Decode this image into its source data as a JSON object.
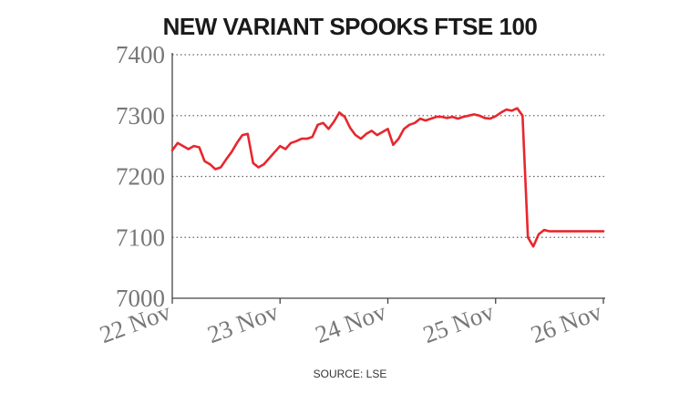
{
  "chart_data": {
    "type": "line",
    "title": "NEW VARIANT SPOOKS FTSE 100",
    "source": "SOURCE: LSE",
    "xlabel": "",
    "ylabel": "",
    "ylim": [
      7000,
      7400
    ],
    "yticks": [
      "7000",
      "7100",
      "7200",
      "7300",
      "7400"
    ],
    "xlim": [
      0,
      4
    ],
    "xticks": [
      "22 Nov",
      "23 Nov",
      "24 Nov",
      "25 Nov",
      "26 Nov"
    ],
    "grid": "horizontal dotted",
    "line_color": "#e8262d",
    "series": [
      {
        "name": "",
        "x": [
          0.0,
          0.05,
          0.1,
          0.15,
          0.2,
          0.25,
          0.3,
          0.35,
          0.4,
          0.45,
          0.5,
          0.55,
          0.6,
          0.65,
          0.7,
          0.75,
          0.8,
          0.85,
          0.9,
          0.95,
          1.0,
          1.05,
          1.1,
          1.15,
          1.2,
          1.25,
          1.3,
          1.35,
          1.4,
          1.45,
          1.5,
          1.55,
          1.6,
          1.65,
          1.7,
          1.75,
          1.8,
          1.85,
          1.9,
          1.95,
          2.0,
          2.05,
          2.1,
          2.15,
          2.2,
          2.25,
          2.3,
          2.35,
          2.4,
          2.45,
          2.5,
          2.55,
          2.6,
          2.65,
          2.7,
          2.75,
          2.8,
          2.85,
          2.9,
          2.95,
          3.0,
          3.05,
          3.1,
          3.15,
          3.2,
          3.25,
          3.3,
          3.35,
          3.4,
          3.45,
          3.5,
          3.55,
          3.6,
          3.65,
          3.7,
          3.75,
          3.8,
          3.85,
          3.88,
          3.9,
          3.93,
          3.96,
          3.99,
          4.0
        ],
        "values": [
          7243,
          7255,
          7250,
          7245,
          7250,
          7248,
          7225,
          7220,
          7212,
          7215,
          7228,
          7240,
          7255,
          7268,
          7270,
          7222,
          7215,
          7220,
          7230,
          7240,
          7250,
          7245,
          7255,
          7258,
          7262,
          7262,
          7265,
          7285,
          7288,
          7278,
          7290,
          7305,
          7298,
          7280,
          7268,
          7262,
          7270,
          7275,
          7268,
          7273,
          7278,
          7252,
          7262,
          7278,
          7285,
          7288,
          7295,
          7292,
          7295,
          7298,
          7298,
          7296,
          7298,
          7295,
          7298,
          7300,
          7302,
          7300,
          7296,
          7295,
          7299,
          7305,
          7310,
          7308,
          7312,
          7300,
          7100,
          7085,
          7105,
          7112,
          7110,
          7110,
          7110,
          7110,
          7110,
          7110,
          7110,
          7110,
          7110,
          7110,
          7110,
          7110,
          7110,
          7110
        ]
      }
    ]
  }
}
